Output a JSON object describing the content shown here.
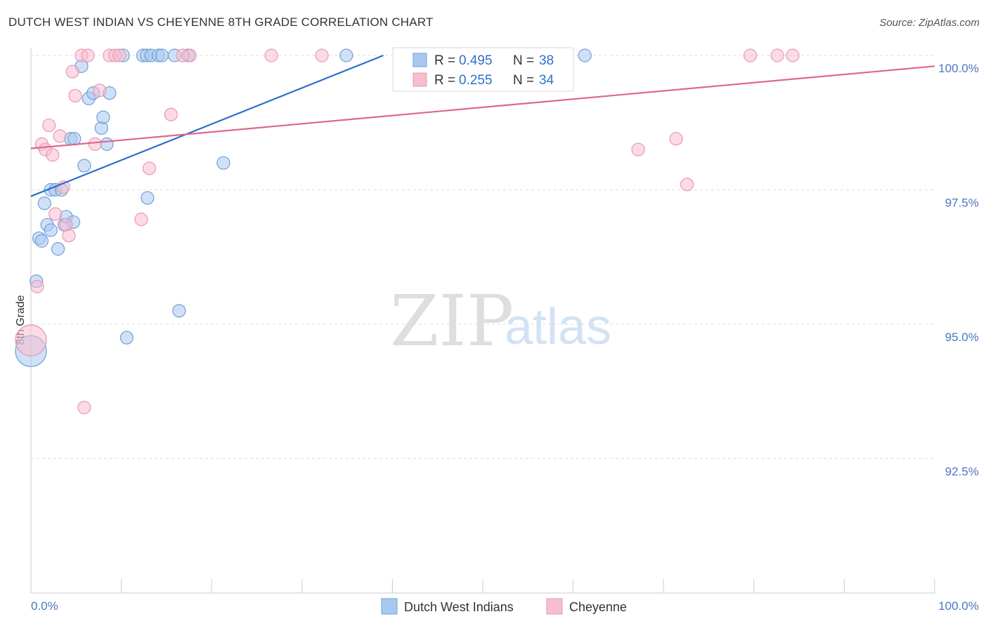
{
  "header": {
    "title": "DUTCH WEST INDIAN VS CHEYENNE 8TH GRADE CORRELATION CHART",
    "source": "Source: ZipAtlas.com"
  },
  "watermark": {
    "zip": "ZIP",
    "atlas": "atlas"
  },
  "chart_data": {
    "type": "scatter",
    "title": "DUTCH WEST INDIAN VS CHEYENNE 8TH GRADE CORRELATION CHART",
    "xlabel": "",
    "ylabel": "8th Grade",
    "xlim": [
      0,
      100
    ],
    "ylim": [
      90.3,
      100.2
    ],
    "x_tick_labels": [
      "0.0%",
      "100.0%"
    ],
    "y_ticks": [
      92.5,
      95.0,
      97.5,
      100.0
    ],
    "y_tick_labels": [
      "92.5%",
      "95.0%",
      "97.5%",
      "100.0%"
    ],
    "legend_position": "top-center",
    "colors": {
      "blue_fill": "#a9c8f0",
      "blue_stroke": "#6f9fd8",
      "blue_line": "#2a6fce",
      "pink_fill": "#f7bed0",
      "pink_stroke": "#e898b2",
      "pink_line": "#e0668f",
      "grid": "#dddddd",
      "tick_label": "#4a78c2"
    },
    "stats": [
      {
        "series": "Dutch West Indians",
        "r_label": "R =",
        "r_value": "0.495",
        "n_label": "N =",
        "n_value": "38"
      },
      {
        "series": "Cheyenne",
        "r_label": "R =",
        "r_value": "0.255",
        "n_label": "N =",
        "n_value": "34"
      }
    ],
    "series": [
      {
        "name": "Dutch West Indians",
        "color": "#a9c8f0",
        "trend": {
          "x": [
            0,
            39
          ],
          "y": [
            97.38,
            100.0
          ]
        },
        "points": [
          {
            "x": 0.0,
            "y": 94.5,
            "big": true
          },
          {
            "x": 0.6,
            "y": 95.8
          },
          {
            "x": 0.9,
            "y": 96.6
          },
          {
            "x": 1.2,
            "y": 96.55
          },
          {
            "x": 1.5,
            "y": 97.25
          },
          {
            "x": 1.8,
            "y": 96.85
          },
          {
            "x": 2.2,
            "y": 96.75
          },
          {
            "x": 2.2,
            "y": 97.5
          },
          {
            "x": 2.7,
            "y": 97.5
          },
          {
            "x": 3.0,
            "y": 96.4
          },
          {
            "x": 3.4,
            "y": 97.5
          },
          {
            "x": 3.7,
            "y": 96.85
          },
          {
            "x": 3.9,
            "y": 97.0
          },
          {
            "x": 4.7,
            "y": 96.9
          },
          {
            "x": 4.4,
            "y": 98.45
          },
          {
            "x": 4.8,
            "y": 98.45
          },
          {
            "x": 5.6,
            "y": 99.8
          },
          {
            "x": 5.9,
            "y": 97.95
          },
          {
            "x": 6.4,
            "y": 99.2
          },
          {
            "x": 6.9,
            "y": 99.3
          },
          {
            "x": 7.8,
            "y": 98.65
          },
          {
            "x": 8.0,
            "y": 98.85
          },
          {
            "x": 8.4,
            "y": 98.35
          },
          {
            "x": 8.7,
            "y": 99.3
          },
          {
            "x": 10.2,
            "y": 100.0
          },
          {
            "x": 10.6,
            "y": 94.75
          },
          {
            "x": 12.4,
            "y": 100.0
          },
          {
            "x": 12.8,
            "y": 100.0
          },
          {
            "x": 12.9,
            "y": 97.35
          },
          {
            "x": 13.3,
            "y": 100.0
          },
          {
            "x": 14.1,
            "y": 100.0
          },
          {
            "x": 14.5,
            "y": 100.0
          },
          {
            "x": 15.9,
            "y": 100.0
          },
          {
            "x": 16.4,
            "y": 95.25
          },
          {
            "x": 17.4,
            "y": 100.0
          },
          {
            "x": 21.3,
            "y": 98.0
          },
          {
            "x": 34.9,
            "y": 100.0
          },
          {
            "x": 61.3,
            "y": 100.0
          }
        ]
      },
      {
        "name": "Cheyenne",
        "color": "#f7bed0",
        "trend": {
          "x": [
            0,
            100
          ],
          "y": [
            98.27,
            99.8
          ]
        },
        "points": [
          {
            "x": 0.0,
            "y": 94.7,
            "big": true
          },
          {
            "x": 0.7,
            "y": 95.7
          },
          {
            "x": 1.2,
            "y": 98.35
          },
          {
            "x": 1.6,
            "y": 98.25
          },
          {
            "x": 2.0,
            "y": 98.7
          },
          {
            "x": 2.4,
            "y": 98.15
          },
          {
            "x": 2.7,
            "y": 97.05
          },
          {
            "x": 3.2,
            "y": 98.5
          },
          {
            "x": 3.6,
            "y": 97.55
          },
          {
            "x": 3.9,
            "y": 96.85
          },
          {
            "x": 4.2,
            "y": 96.65
          },
          {
            "x": 4.6,
            "y": 99.7
          },
          {
            "x": 4.9,
            "y": 99.25
          },
          {
            "x": 5.6,
            "y": 100.0
          },
          {
            "x": 5.9,
            "y": 93.45
          },
          {
            "x": 6.3,
            "y": 100.0
          },
          {
            "x": 7.1,
            "y": 98.35
          },
          {
            "x": 7.6,
            "y": 99.35
          },
          {
            "x": 8.7,
            "y": 100.0
          },
          {
            "x": 9.3,
            "y": 100.0
          },
          {
            "x": 9.8,
            "y": 100.0
          },
          {
            "x": 12.2,
            "y": 96.95
          },
          {
            "x": 13.1,
            "y": 97.9
          },
          {
            "x": 15.5,
            "y": 98.9
          },
          {
            "x": 17.6,
            "y": 100.0
          },
          {
            "x": 26.6,
            "y": 100.0
          },
          {
            "x": 32.2,
            "y": 100.0
          },
          {
            "x": 67.2,
            "y": 98.25
          },
          {
            "x": 71.4,
            "y": 98.45
          },
          {
            "x": 72.6,
            "y": 97.6
          },
          {
            "x": 79.6,
            "y": 100.0
          },
          {
            "x": 82.6,
            "y": 100.0
          },
          {
            "x": 84.3,
            "y": 100.0
          },
          {
            "x": 16.8,
            "y": 100.0
          }
        ]
      }
    ]
  }
}
